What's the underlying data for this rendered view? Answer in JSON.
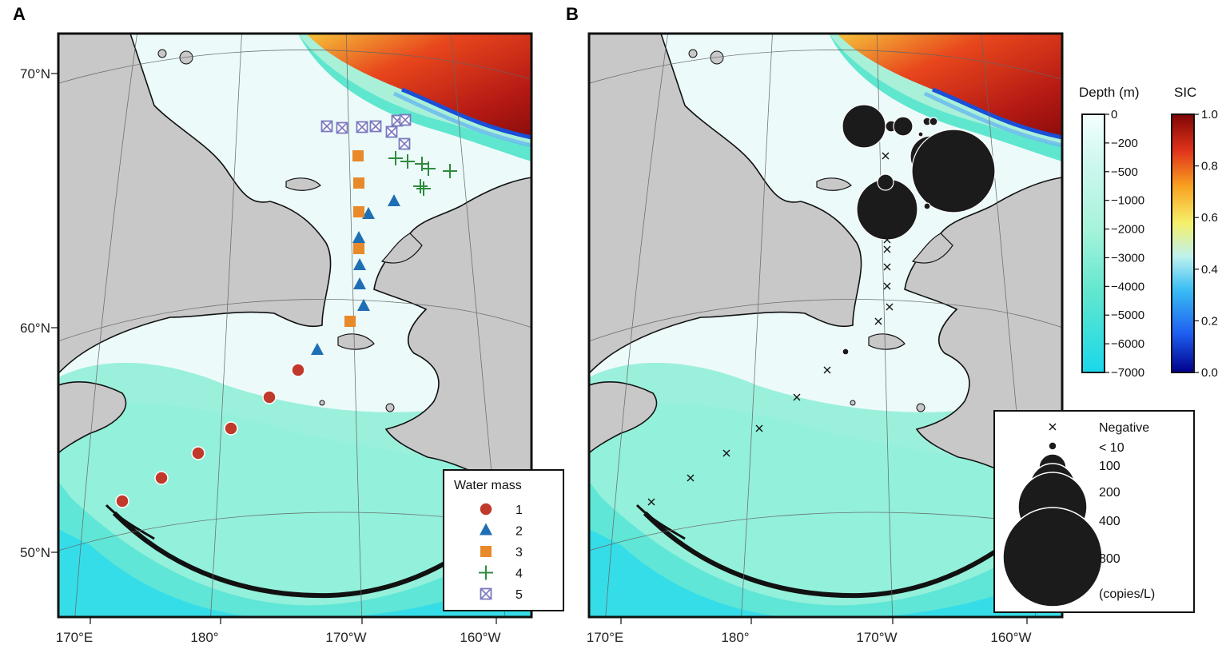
{
  "panels": [
    {
      "letter": "A",
      "x_ticks": [
        "170°E",
        "180°",
        "170°W",
        "160°W"
      ],
      "y_ticks": [
        "70°N",
        "60°N",
        "50°N"
      ]
    },
    {
      "letter": "B",
      "x_ticks": [
        "170°E",
        "180°",
        "170°W",
        "160°W"
      ]
    }
  ],
  "legend_a": {
    "title": "Water mass",
    "entries": [
      {
        "label": "1",
        "marker": "circle",
        "color": "#c0392b"
      },
      {
        "label": "2",
        "marker": "triangle",
        "color": "#1f6fb5"
      },
      {
        "label": "3",
        "marker": "square",
        "color": "#e8892a"
      },
      {
        "label": "4",
        "marker": "plus",
        "color": "#2e8b3e"
      },
      {
        "label": "5",
        "marker": "boxed-x",
        "color": "#7a78bf"
      }
    ]
  },
  "depth_colorbar": {
    "title": "Depth (m)",
    "ticks": [
      "0",
      "−200",
      "−500",
      "−1000",
      "−2000",
      "−3000",
      "−4000",
      "−5000",
      "−6000",
      "−7000"
    ]
  },
  "sic_colorbar": {
    "title": "SIC",
    "ticks": [
      "1.0",
      "0.8",
      "0.6",
      "0.4",
      "0.2",
      "0.0"
    ]
  },
  "size_legend": {
    "entries": [
      {
        "label": "Negative",
        "symbol": "cross"
      },
      {
        "label": "< 10",
        "symbol": "dot"
      },
      {
        "label": "100",
        "symbol": "circle"
      },
      {
        "label": "200",
        "symbol": "circle"
      },
      {
        "label": "400",
        "symbol": "circle"
      },
      {
        "label": "800",
        "symbol": "circle"
      }
    ],
    "unit": "(copies/L)"
  },
  "colors": {
    "land": "#c8c8c8",
    "shelf": "#ecfbfa",
    "deep": "#8ef0da",
    "trench": "#3edfe6",
    "ice_high": "#9b1010",
    "ice_mid": "#f5a623",
    "bubble": "#1b1b1b"
  }
}
